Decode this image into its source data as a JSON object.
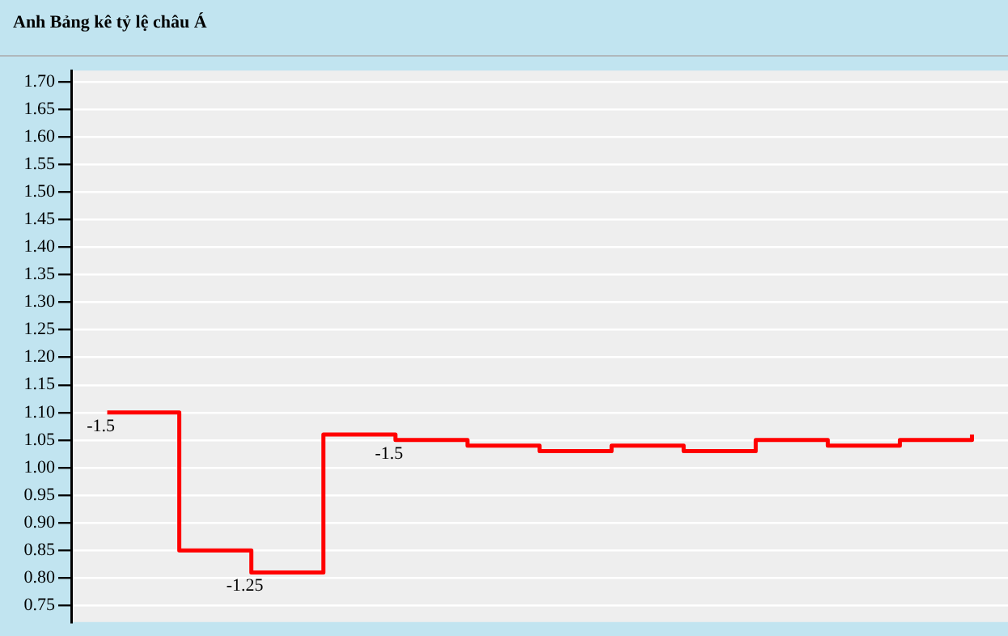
{
  "chart_data": {
    "type": "step",
    "title": "Anh Bảng kê tỷ lệ châu Á",
    "categories": [
      null,
      null,
      null,
      null,
      null,
      null,
      null,
      null,
      null,
      null,
      null,
      null,
      null
    ],
    "series": [
      {
        "color": "#ff0000",
        "values": [
          1.1,
          0.85,
          0.81,
          1.06,
          1.05,
          1.04,
          1.03,
          1.04,
          1.03,
          1.05,
          1.04,
          1.05,
          1.06
        ]
      }
    ],
    "annotations": [
      {
        "text": "-1.5",
        "y": 1.1
      },
      {
        "text": "-1.25",
        "y": 0.81
      },
      {
        "text": "-1.5",
        "y": 1.05
      }
    ],
    "ylim": [
      0.72,
      1.72
    ],
    "yticks": [
      {
        "value": 0.75,
        "label": "0.75"
      },
      {
        "value": 0.8,
        "label": "0.80"
      },
      {
        "value": 0.85,
        "label": "0.85"
      },
      {
        "value": 0.9,
        "label": "0.90"
      },
      {
        "value": 0.95,
        "label": "0.95"
      },
      {
        "value": 1.0,
        "label": "1.00"
      },
      {
        "value": 1.05,
        "label": "1.05"
      },
      {
        "value": 1.1,
        "label": "1.10"
      },
      {
        "value": 1.15,
        "label": "1.15"
      },
      {
        "value": 1.2,
        "label": "1.20"
      },
      {
        "value": 1.25,
        "label": "1.25"
      },
      {
        "value": 1.3,
        "label": "1.30"
      },
      {
        "value": 1.35,
        "label": "1.35"
      },
      {
        "value": 1.4,
        "label": "1.40"
      },
      {
        "value": 1.45,
        "label": "1.45"
      },
      {
        "value": 1.5,
        "label": "1.50"
      },
      {
        "value": 1.55,
        "label": "1.55"
      },
      {
        "value": 1.6,
        "label": "1.60"
      },
      {
        "value": 1.65,
        "label": "1.65"
      },
      {
        "value": 1.7,
        "label": "1.70"
      }
    ],
    "grid": "y",
    "legend": false,
    "tick_labels": "y",
    "marker": "none"
  }
}
